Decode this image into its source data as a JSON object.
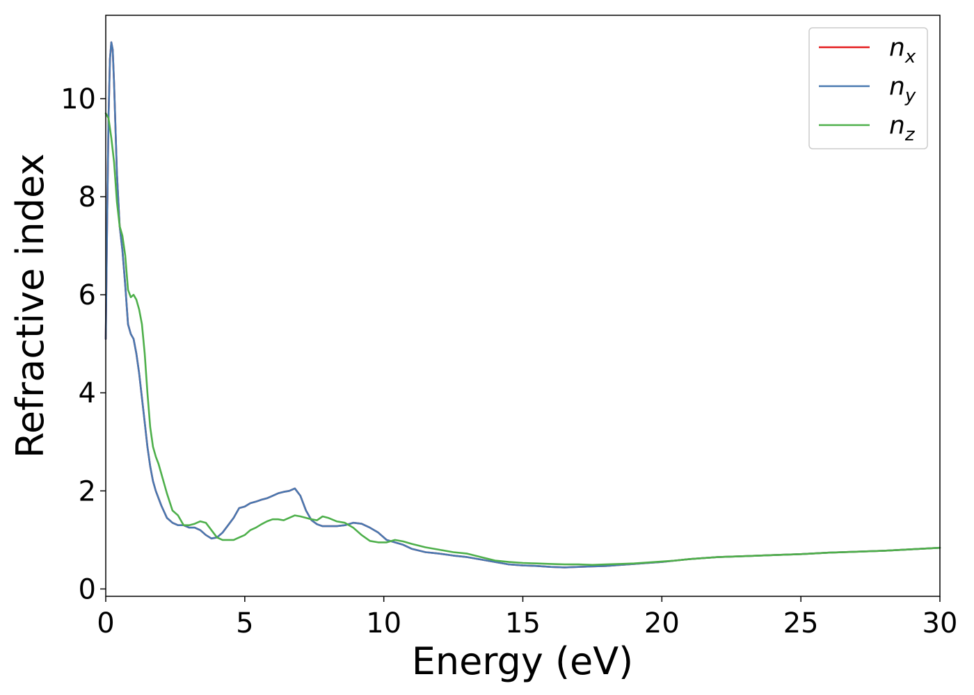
{
  "chart_data": {
    "type": "line",
    "xlabel": "Energy (eV)",
    "ylabel": "Refractive index",
    "xlim": [
      0,
      30
    ],
    "ylim": [
      -0.15,
      11.7
    ],
    "xticks": [
      0,
      5,
      10,
      15,
      20,
      25,
      30
    ],
    "yticks": [
      0,
      2,
      4,
      6,
      8,
      10
    ],
    "xtick_labels": [
      "0",
      "5",
      "10",
      "15",
      "20",
      "25",
      "30"
    ],
    "ytick_labels": [
      "0",
      "2",
      "4",
      "6",
      "8",
      "10"
    ],
    "grid": false,
    "legend_position": "top-right",
    "series": [
      {
        "name": "n",
        "subscript": "x",
        "color": "#e41a1c",
        "x": [
          0,
          0.05,
          0.1,
          0.15,
          0.2,
          0.25,
          0.3,
          0.4,
          0.5,
          0.6,
          0.7,
          0.8,
          0.9,
          1.0,
          1.1,
          1.2,
          1.3,
          1.4,
          1.5,
          1.6,
          1.7,
          1.8,
          2.0,
          2.2,
          2.4,
          2.6,
          2.8,
          3.0,
          3.2,
          3.4,
          3.6,
          3.8,
          4.0,
          4.2,
          4.4,
          4.6,
          4.8,
          5.0,
          5.2,
          5.4,
          5.6,
          5.8,
          6.0,
          6.2,
          6.4,
          6.6,
          6.8,
          7.0,
          7.2,
          7.4,
          7.6,
          7.8,
          8.0,
          8.3,
          8.6,
          8.9,
          9.2,
          9.5,
          9.8,
          10.1,
          10.4,
          10.7,
          11.0,
          11.5,
          12.0,
          12.5,
          13.0,
          13.5,
          14.0,
          14.5,
          15.0,
          15.5,
          16.0,
          16.5,
          17.0,
          17.5,
          18.0,
          18.5,
          19.0,
          19.5,
          20.0,
          20.5,
          21.0,
          22.0,
          23.0,
          24.0,
          25.0,
          26.0,
          27.0,
          28.0,
          29.0,
          30.0
        ],
        "values": [
          5.1,
          7.5,
          9.6,
          10.8,
          11.15,
          11.0,
          10.3,
          8.5,
          7.4,
          6.9,
          6.2,
          5.4,
          5.2,
          5.1,
          4.8,
          4.4,
          3.9,
          3.4,
          2.9,
          2.5,
          2.2,
          2.0,
          1.7,
          1.45,
          1.35,
          1.3,
          1.3,
          1.25,
          1.25,
          1.2,
          1.1,
          1.03,
          1.05,
          1.15,
          1.3,
          1.45,
          1.65,
          1.68,
          1.75,
          1.78,
          1.82,
          1.85,
          1.9,
          1.95,
          1.98,
          2.0,
          2.05,
          1.9,
          1.6,
          1.4,
          1.32,
          1.28,
          1.28,
          1.28,
          1.3,
          1.35,
          1.33,
          1.25,
          1.15,
          1.0,
          0.95,
          0.9,
          0.82,
          0.75,
          0.72,
          0.68,
          0.65,
          0.6,
          0.55,
          0.5,
          0.48,
          0.47,
          0.45,
          0.44,
          0.45,
          0.46,
          0.47,
          0.49,
          0.51,
          0.53,
          0.55,
          0.58,
          0.61,
          0.65,
          0.67,
          0.69,
          0.71,
          0.74,
          0.76,
          0.78,
          0.81,
          0.84
        ]
      },
      {
        "name": "n",
        "subscript": "y",
        "color": "#4878b0",
        "x": [
          0,
          0.05,
          0.1,
          0.15,
          0.2,
          0.25,
          0.3,
          0.4,
          0.5,
          0.6,
          0.7,
          0.8,
          0.9,
          1.0,
          1.1,
          1.2,
          1.3,
          1.4,
          1.5,
          1.6,
          1.7,
          1.8,
          2.0,
          2.2,
          2.4,
          2.6,
          2.8,
          3.0,
          3.2,
          3.4,
          3.6,
          3.8,
          4.0,
          4.2,
          4.4,
          4.6,
          4.8,
          5.0,
          5.2,
          5.4,
          5.6,
          5.8,
          6.0,
          6.2,
          6.4,
          6.6,
          6.8,
          7.0,
          7.2,
          7.4,
          7.6,
          7.8,
          8.0,
          8.3,
          8.6,
          8.9,
          9.2,
          9.5,
          9.8,
          10.1,
          10.4,
          10.7,
          11.0,
          11.5,
          12.0,
          12.5,
          13.0,
          13.5,
          14.0,
          14.5,
          15.0,
          15.5,
          16.0,
          16.5,
          17.0,
          17.5,
          18.0,
          18.5,
          19.0,
          19.5,
          20.0,
          20.5,
          21.0,
          22.0,
          23.0,
          24.0,
          25.0,
          26.0,
          27.0,
          28.0,
          29.0,
          30.0
        ],
        "values": [
          5.1,
          7.5,
          9.6,
          10.8,
          11.15,
          11.0,
          10.3,
          8.5,
          7.4,
          6.9,
          6.2,
          5.4,
          5.2,
          5.1,
          4.8,
          4.4,
          3.9,
          3.4,
          2.9,
          2.5,
          2.2,
          2.0,
          1.7,
          1.45,
          1.35,
          1.3,
          1.3,
          1.25,
          1.25,
          1.2,
          1.1,
          1.03,
          1.05,
          1.15,
          1.3,
          1.45,
          1.65,
          1.68,
          1.75,
          1.78,
          1.82,
          1.85,
          1.9,
          1.95,
          1.98,
          2.0,
          2.05,
          1.9,
          1.6,
          1.4,
          1.32,
          1.28,
          1.28,
          1.28,
          1.3,
          1.35,
          1.33,
          1.25,
          1.15,
          1.0,
          0.95,
          0.9,
          0.82,
          0.75,
          0.72,
          0.68,
          0.65,
          0.6,
          0.55,
          0.5,
          0.48,
          0.47,
          0.45,
          0.44,
          0.45,
          0.46,
          0.47,
          0.49,
          0.51,
          0.53,
          0.55,
          0.58,
          0.61,
          0.65,
          0.67,
          0.69,
          0.71,
          0.74,
          0.76,
          0.78,
          0.81,
          0.84
        ]
      },
      {
        "name": "n",
        "subscript": "z",
        "color": "#4daf4a",
        "x": [
          0,
          0.1,
          0.2,
          0.3,
          0.4,
          0.5,
          0.6,
          0.7,
          0.8,
          0.9,
          1.0,
          1.1,
          1.2,
          1.3,
          1.4,
          1.5,
          1.6,
          1.7,
          1.8,
          1.9,
          2.0,
          2.2,
          2.4,
          2.6,
          2.8,
          3.0,
          3.2,
          3.4,
          3.6,
          3.8,
          4.0,
          4.2,
          4.4,
          4.6,
          4.8,
          5.0,
          5.2,
          5.4,
          5.6,
          5.8,
          6.0,
          6.2,
          6.4,
          6.6,
          6.8,
          7.0,
          7.2,
          7.4,
          7.6,
          7.8,
          8.0,
          8.3,
          8.6,
          8.9,
          9.2,
          9.5,
          9.8,
          10.1,
          10.4,
          10.7,
          11.0,
          11.5,
          12.0,
          12.5,
          13.0,
          13.5,
          14.0,
          14.5,
          15.0,
          15.5,
          16.0,
          16.5,
          17.0,
          17.5,
          18.0,
          18.5,
          19.0,
          19.5,
          20.0,
          20.5,
          21.0,
          22.0,
          23.0,
          24.0,
          25.0,
          26.0,
          27.0,
          28.0,
          29.0,
          30.0
        ],
        "values": [
          9.7,
          9.6,
          9.2,
          8.7,
          7.9,
          7.4,
          7.2,
          6.8,
          6.1,
          5.95,
          6.0,
          5.9,
          5.7,
          5.4,
          4.8,
          4.0,
          3.3,
          2.9,
          2.7,
          2.55,
          2.35,
          1.95,
          1.6,
          1.5,
          1.3,
          1.3,
          1.33,
          1.38,
          1.35,
          1.2,
          1.05,
          1.0,
          1.0,
          1.0,
          1.05,
          1.1,
          1.2,
          1.25,
          1.32,
          1.38,
          1.42,
          1.42,
          1.4,
          1.45,
          1.5,
          1.48,
          1.45,
          1.42,
          1.4,
          1.48,
          1.45,
          1.38,
          1.35,
          1.25,
          1.1,
          0.98,
          0.95,
          0.95,
          1.0,
          0.97,
          0.92,
          0.85,
          0.8,
          0.75,
          0.72,
          0.65,
          0.58,
          0.55,
          0.53,
          0.52,
          0.51,
          0.5,
          0.5,
          0.49,
          0.5,
          0.51,
          0.52,
          0.54,
          0.56,
          0.58,
          0.61,
          0.65,
          0.67,
          0.69,
          0.71,
          0.74,
          0.76,
          0.78,
          0.81,
          0.84
        ]
      }
    ]
  }
}
